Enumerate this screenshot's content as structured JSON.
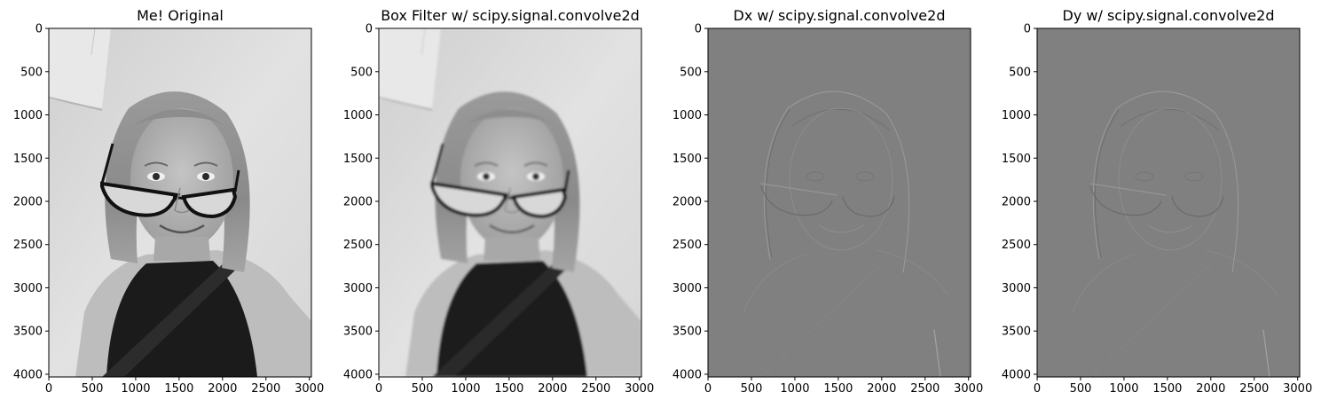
{
  "figure": {
    "panels": [
      {
        "key": "original",
        "title": "Me! Original",
        "image_kind": "photo-grayscale",
        "x_ticks": [
          "0",
          "500",
          "1000",
          "1500",
          "2000",
          "2500",
          "3000"
        ],
        "y_ticks": [
          "0",
          "500",
          "1000",
          "1500",
          "2000",
          "2500",
          "3000",
          "3500",
          "4000"
        ]
      },
      {
        "key": "box",
        "title": "Box Filter w/ scipy.signal.convolve2d",
        "image_kind": "photo-grayscale-blurred",
        "x_ticks": [
          "0",
          "500",
          "1000",
          "1500",
          "2000",
          "2500",
          "3000"
        ],
        "y_ticks": [
          "0",
          "500",
          "1000",
          "1500",
          "2000",
          "2500",
          "3000",
          "3500",
          "4000"
        ]
      },
      {
        "key": "dx",
        "title": "Dx w/ scipy.signal.convolve2d",
        "image_kind": "edges-gray",
        "x_ticks": [
          "0",
          "500",
          "1000",
          "1500",
          "2000",
          "2500",
          "3000"
        ],
        "y_ticks": [
          "0",
          "500",
          "1000",
          "1500",
          "2000",
          "2500",
          "3000",
          "3500",
          "4000"
        ]
      },
      {
        "key": "dy",
        "title": "Dy w/ scipy.signal.convolve2d",
        "image_kind": "edges-gray",
        "x_ticks": [
          "0",
          "500",
          "1000",
          "1500",
          "2000",
          "2500",
          "3000"
        ],
        "y_ticks": [
          "0",
          "500",
          "1000",
          "1500",
          "2000",
          "2500",
          "3000",
          "3500",
          "4000"
        ]
      }
    ],
    "colors": {
      "gradient_bg": "#808080",
      "axis": "#000000",
      "background": "#ffffff"
    }
  }
}
